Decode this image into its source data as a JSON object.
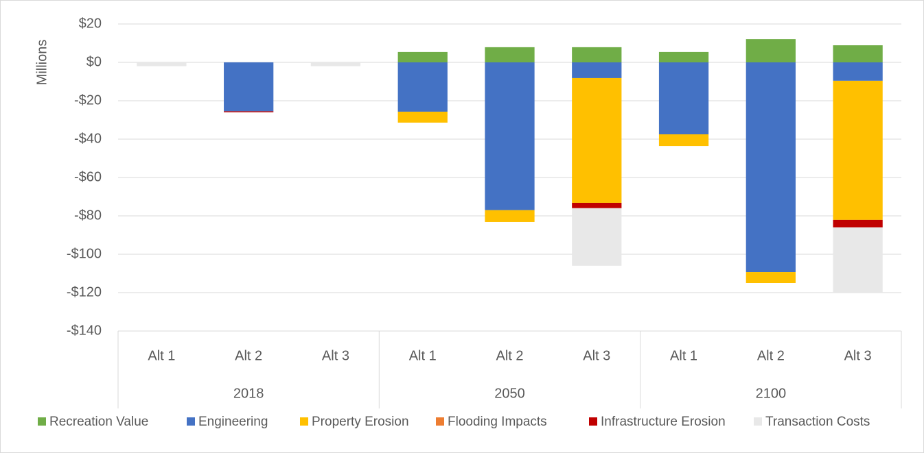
{
  "chart_data": {
    "type": "bar",
    "stacked": true,
    "y_label": "Millions",
    "categories": [
      "Alt 1",
      "Alt 2",
      "Alt 3",
      "Alt 1",
      "Alt 2",
      "Alt 3",
      "Alt 1",
      "Alt 2",
      "Alt 3"
    ],
    "groups": [
      "2018",
      "2050",
      "2100"
    ],
    "series": [
      {
        "name": "Recreation Value",
        "color": "#70ad47",
        "values": [
          0,
          0,
          0,
          5.4,
          7.9,
          7.9,
          5.4,
          12.1,
          8.9
        ]
      },
      {
        "name": "Engineering",
        "color": "#4472c4",
        "values": [
          0,
          -25.5,
          0,
          -25.7,
          -77,
          -8.2,
          -37.5,
          -109.3,
          -9.6
        ]
      },
      {
        "name": "Property Erosion",
        "color": "#ffc000",
        "values": [
          0,
          0,
          0,
          -5.7,
          -6.2,
          -65,
          -6.1,
          -5.7,
          -72.5
        ]
      },
      {
        "name": "Flooding Impacts",
        "color": "#ed7d31",
        "values": [
          0,
          0,
          0,
          0,
          0,
          0,
          0,
          0,
          0
        ]
      },
      {
        "name": "Infrastructure Erosion",
        "color": "#c00000",
        "values": [
          0,
          -0.5,
          0,
          0,
          0,
          -2.8,
          0,
          0,
          -3.9
        ]
      },
      {
        "name": "Transaction Costs",
        "color": "#e8e8e8",
        "values": [
          -2,
          0,
          -2,
          0,
          0,
          -30,
          0,
          0,
          -34
        ]
      }
    ],
    "ylim": [
      -140,
      20
    ],
    "yticks": [
      {
        "value": -140,
        "label": "-$140"
      },
      {
        "value": -120,
        "label": "-$120"
      },
      {
        "value": -100,
        "label": "-$100"
      },
      {
        "value": -80,
        "label": "-$80"
      },
      {
        "value": -60,
        "label": "-$60"
      },
      {
        "value": -40,
        "label": "-$40"
      },
      {
        "value": -20,
        "label": "-$20"
      },
      {
        "value": 0,
        "label": "$0"
      },
      {
        "value": 20,
        "label": "$20"
      }
    ],
    "grid": true,
    "legend": "bottom"
  }
}
